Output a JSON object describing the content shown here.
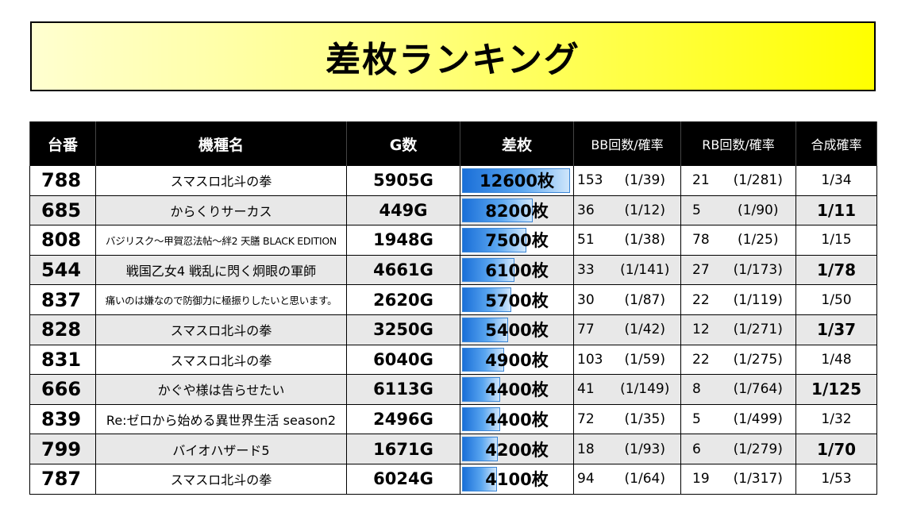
{
  "title": "差枚ランキング",
  "headers": [
    "台番",
    "機種名",
    "G数",
    "差枚",
    "BB回数/確率",
    "RB回数/確率",
    "合成確率"
  ],
  "rows": [
    {
      "num": "788",
      "machine": "スマスロ北斗の拳",
      "games": "5905G",
      "diff": "12600枚",
      "bb_count": "153",
      "bb_rate": "(1/39)",
      "rb_count": "21",
      "rb_rate": "(1/281)",
      "combined": "1/34",
      "diff_value": 12600
    },
    {
      "num": "685",
      "machine": "からくりサーカス",
      "games": "449G",
      "diff": "8200枚",
      "bb_count": "36",
      "bb_rate": "(1/12)",
      "rb_count": "5",
      "rb_rate": "(1/90)",
      "combined": "1/11",
      "diff_value": 8200
    },
    {
      "num": "808",
      "machine": "バジリスク～甲賀忍法帖～絆2 天膳 BLACK EDITION",
      "games": "1948G",
      "diff": "7500枚",
      "bb_count": "51",
      "bb_rate": "(1/38)",
      "rb_count": "78",
      "rb_rate": "(1/25)",
      "combined": "1/15",
      "diff_value": 7500
    },
    {
      "num": "544",
      "machine": "戦国乙女4 戦乱に閃く炯眼の軍師",
      "games": "4661G",
      "diff": "6100枚",
      "bb_count": "33",
      "bb_rate": "(1/141)",
      "rb_count": "27",
      "rb_rate": "(1/173)",
      "combined": "1/78",
      "diff_value": 6100
    },
    {
      "num": "837",
      "machine": "痛いのは嫌なので防御力に極振りしたいと思います。",
      "games": "2620G",
      "diff": "5700枚",
      "bb_count": "30",
      "bb_rate": "(1/87)",
      "rb_count": "22",
      "rb_rate": "(1/119)",
      "combined": "1/50",
      "diff_value": 5700
    },
    {
      "num": "828",
      "machine": "スマスロ北斗の拳",
      "games": "3250G",
      "diff": "5400枚",
      "bb_count": "77",
      "bb_rate": "(1/42)",
      "rb_count": "12",
      "rb_rate": "(1/271)",
      "combined": "1/37",
      "diff_value": 5400
    },
    {
      "num": "831",
      "machine": "スマスロ北斗の拳",
      "games": "6040G",
      "diff": "4900枚",
      "bb_count": "103",
      "bb_rate": "(1/59)",
      "rb_count": "22",
      "rb_rate": "(1/275)",
      "combined": "1/48",
      "diff_value": 4900
    },
    {
      "num": "666",
      "machine": "かぐや様は告らせたい",
      "games": "6113G",
      "diff": "4400枚",
      "bb_count": "41",
      "bb_rate": "(1/149)",
      "rb_count": "8",
      "rb_rate": "(1/764)",
      "combined": "1/125",
      "diff_value": 4400
    },
    {
      "num": "839",
      "machine": "Re:ゼロから始める異世界生活 season2",
      "games": "2496G",
      "diff": "4400枚",
      "bb_count": "72",
      "bb_rate": "(1/35)",
      "rb_count": "5",
      "rb_rate": "(1/499)",
      "combined": "1/32",
      "diff_value": 4400
    },
    {
      "num": "799",
      "machine": "バイオハザード5",
      "games": "1671G",
      "diff": "4200枚",
      "bb_count": "18",
      "bb_rate": "(1/93)",
      "rb_count": "6",
      "rb_rate": "(1/279)",
      "combined": "1/70",
      "diff_value": 4200
    },
    {
      "num": "787",
      "machine": "スマスロ北斗の拳",
      "games": "6024G",
      "diff": "4100枚",
      "bb_count": "94",
      "bb_rate": "(1/64)",
      "rb_count": "19",
      "rb_rate": "(1/317)",
      "combined": "1/53",
      "diff_value": 4100
    }
  ],
  "bar_max": 12600,
  "colors": {
    "title_bg": "#ffff00",
    "header_bg": "#000000",
    "bar": "#1a6fd8",
    "alt_row": "#e8e8e8"
  }
}
